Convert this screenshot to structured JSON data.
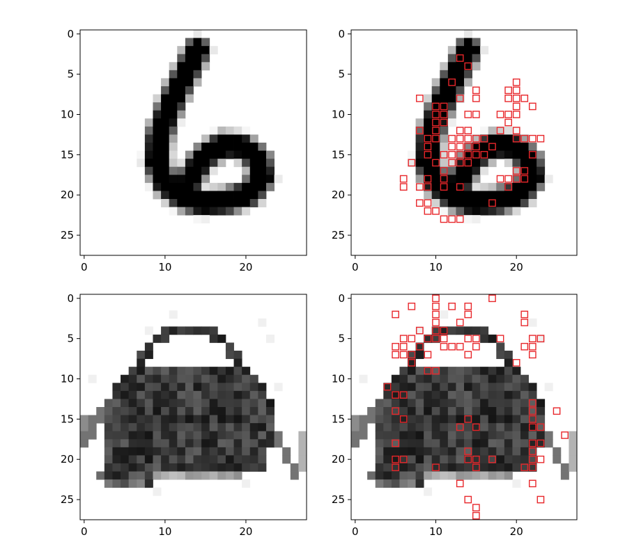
{
  "chart_data": [
    {
      "type": "heatmap",
      "panel": "digit-original",
      "xticks": [
        0,
        10,
        20
      ],
      "yticks": [
        0,
        5,
        10,
        15,
        20,
        25
      ],
      "xlim": [
        -0.5,
        27.5
      ],
      "ylim": [
        27.5,
        -0.5
      ],
      "grid": false,
      "colormap": "gray_r",
      "image": "digit-6",
      "highlights": []
    },
    {
      "type": "heatmap",
      "panel": "digit-highlighted",
      "xticks": [
        0,
        10,
        20
      ],
      "yticks": [
        0,
        5,
        10,
        15,
        20,
        25
      ],
      "xlim": [
        -0.5,
        27.5
      ],
      "ylim": [
        27.5,
        -0.5
      ],
      "grid": false,
      "colormap": "gray_r",
      "image": "digit-6",
      "highlight_color": "#e8262a",
      "highlights": [
        [
          13,
          3
        ],
        [
          14,
          4
        ],
        [
          12,
          6
        ],
        [
          20,
          6
        ],
        [
          15,
          7
        ],
        [
          19,
          7
        ],
        [
          20,
          7
        ],
        [
          8,
          8
        ],
        [
          13,
          8
        ],
        [
          15,
          8
        ],
        [
          19,
          8
        ],
        [
          20,
          8
        ],
        [
          21,
          8
        ],
        [
          10,
          9
        ],
        [
          11,
          9
        ],
        [
          20,
          9
        ],
        [
          22,
          9
        ],
        [
          10,
          10
        ],
        [
          11,
          10
        ],
        [
          14,
          10
        ],
        [
          15,
          10
        ],
        [
          18,
          10
        ],
        [
          19,
          10
        ],
        [
          20,
          10
        ],
        [
          10,
          11
        ],
        [
          11,
          11
        ],
        [
          19,
          11
        ],
        [
          8,
          12
        ],
        [
          10,
          12
        ],
        [
          13,
          12
        ],
        [
          14,
          12
        ],
        [
          18,
          12
        ],
        [
          20,
          12
        ],
        [
          9,
          13
        ],
        [
          10,
          13
        ],
        [
          12,
          13
        ],
        [
          13,
          13
        ],
        [
          14,
          13
        ],
        [
          15,
          13
        ],
        [
          16,
          13
        ],
        [
          20,
          13
        ],
        [
          21,
          13
        ],
        [
          22,
          13
        ],
        [
          23,
          13
        ],
        [
          9,
          14
        ],
        [
          12,
          14
        ],
        [
          13,
          14
        ],
        [
          14,
          14
        ],
        [
          15,
          14
        ],
        [
          17,
          14
        ],
        [
          9,
          15
        ],
        [
          11,
          15
        ],
        [
          12,
          15
        ],
        [
          13,
          15
        ],
        [
          14,
          15
        ],
        [
          15,
          15
        ],
        [
          16,
          15
        ],
        [
          22,
          15
        ],
        [
          7,
          16
        ],
        [
          10,
          16
        ],
        [
          12,
          16
        ],
        [
          13,
          16
        ],
        [
          14,
          16
        ],
        [
          11,
          17
        ],
        [
          20,
          17
        ],
        [
          21,
          17
        ],
        [
          6,
          18
        ],
        [
          9,
          18
        ],
        [
          11,
          18
        ],
        [
          18,
          18
        ],
        [
          19,
          18
        ],
        [
          20,
          18
        ],
        [
          21,
          18
        ],
        [
          6,
          19
        ],
        [
          8,
          19
        ],
        [
          9,
          19
        ],
        [
          11,
          19
        ],
        [
          13,
          19
        ],
        [
          19,
          19
        ],
        [
          8,
          21
        ],
        [
          9,
          21
        ],
        [
          17,
          21
        ],
        [
          9,
          22
        ],
        [
          10,
          22
        ],
        [
          11,
          23
        ],
        [
          12,
          23
        ],
        [
          13,
          23
        ]
      ]
    },
    {
      "type": "heatmap",
      "panel": "bag-original",
      "xticks": [
        0,
        10,
        20
      ],
      "yticks": [
        0,
        5,
        10,
        15,
        20,
        25
      ],
      "xlim": [
        -0.5,
        27.5
      ],
      "ylim": [
        27.5,
        -0.5
      ],
      "grid": false,
      "colormap": "gray_r",
      "image": "bag",
      "highlights": []
    },
    {
      "type": "heatmap",
      "panel": "bag-highlighted",
      "xticks": [
        0,
        10,
        20
      ],
      "yticks": [
        0,
        5,
        10,
        15,
        20,
        25
      ],
      "xlim": [
        -0.5,
        27.5
      ],
      "ylim": [
        27.5,
        -0.5
      ],
      "grid": false,
      "colormap": "gray_r",
      "image": "bag",
      "highlight_color": "#e8262a",
      "highlights": [
        [
          10,
          0
        ],
        [
          17,
          0
        ],
        [
          7,
          1
        ],
        [
          10,
          1
        ],
        [
          12,
          1
        ],
        [
          14,
          1
        ],
        [
          5,
          2
        ],
        [
          10,
          2
        ],
        [
          14,
          2
        ],
        [
          21,
          2
        ],
        [
          10,
          3
        ],
        [
          13,
          3
        ],
        [
          21,
          3
        ],
        [
          8,
          4
        ],
        [
          10,
          4
        ],
        [
          11,
          4
        ],
        [
          6,
          5
        ],
        [
          7,
          5
        ],
        [
          9,
          5
        ],
        [
          10,
          5
        ],
        [
          11,
          5
        ],
        [
          14,
          5
        ],
        [
          15,
          5
        ],
        [
          18,
          5
        ],
        [
          22,
          5
        ],
        [
          23,
          5
        ],
        [
          5,
          6
        ],
        [
          6,
          6
        ],
        [
          8,
          6
        ],
        [
          11,
          6
        ],
        [
          12,
          6
        ],
        [
          13,
          6
        ],
        [
          15,
          6
        ],
        [
          21,
          6
        ],
        [
          22,
          6
        ],
        [
          5,
          7
        ],
        [
          6,
          7
        ],
        [
          7,
          7
        ],
        [
          9,
          7
        ],
        [
          14,
          7
        ],
        [
          22,
          7
        ],
        [
          7,
          8
        ],
        [
          20,
          8
        ],
        [
          9,
          9
        ],
        [
          10,
          9
        ],
        [
          4,
          11
        ],
        [
          5,
          12
        ],
        [
          6,
          12
        ],
        [
          22,
          13
        ],
        [
          5,
          14
        ],
        [
          22,
          14
        ],
        [
          25,
          14
        ],
        [
          6,
          15
        ],
        [
          22,
          15
        ],
        [
          15,
          16
        ],
        [
          22,
          16
        ],
        [
          23,
          16
        ],
        [
          13,
          16
        ],
        [
          14,
          15
        ],
        [
          26,
          17
        ],
        [
          5,
          18
        ],
        [
          22,
          18
        ],
        [
          23,
          18
        ],
        [
          14,
          19
        ],
        [
          22,
          19
        ],
        [
          5,
          20
        ],
        [
          6,
          20
        ],
        [
          14,
          20
        ],
        [
          15,
          20
        ],
        [
          17,
          20
        ],
        [
          22,
          20
        ],
        [
          23,
          20
        ],
        [
          5,
          21
        ],
        [
          10,
          21
        ],
        [
          15,
          21
        ],
        [
          21,
          21
        ],
        [
          22,
          21
        ],
        [
          13,
          23
        ],
        [
          22,
          23
        ],
        [
          23,
          25
        ],
        [
          14,
          25
        ],
        [
          15,
          26
        ],
        [
          15,
          27
        ]
      ]
    }
  ]
}
